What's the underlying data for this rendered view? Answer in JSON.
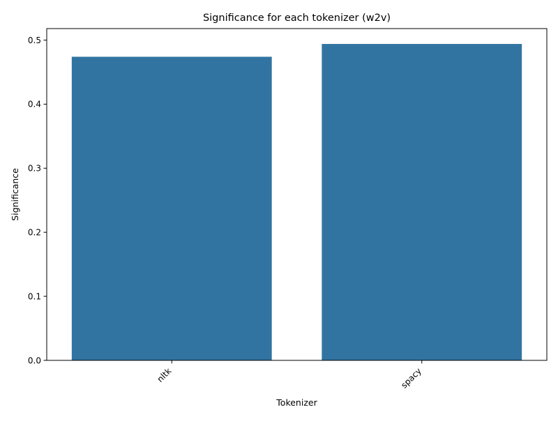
{
  "chart_data": {
    "type": "bar",
    "title": "Significance for each tokenizer (w2v)",
    "xlabel": "Tokenizer",
    "ylabel": "Significance",
    "categories": [
      "nltk",
      "spacy"
    ],
    "values": [
      0.474,
      0.494
    ],
    "ylim": [
      0,
      0.518
    ],
    "yticks": [
      0.0,
      0.1,
      0.2,
      0.3,
      0.4,
      0.5
    ],
    "ytick_labels": [
      "0.0",
      "0.1",
      "0.2",
      "0.3",
      "0.4",
      "0.5"
    ],
    "grid": false,
    "legend": "none",
    "bar_color": "#3274a1"
  }
}
